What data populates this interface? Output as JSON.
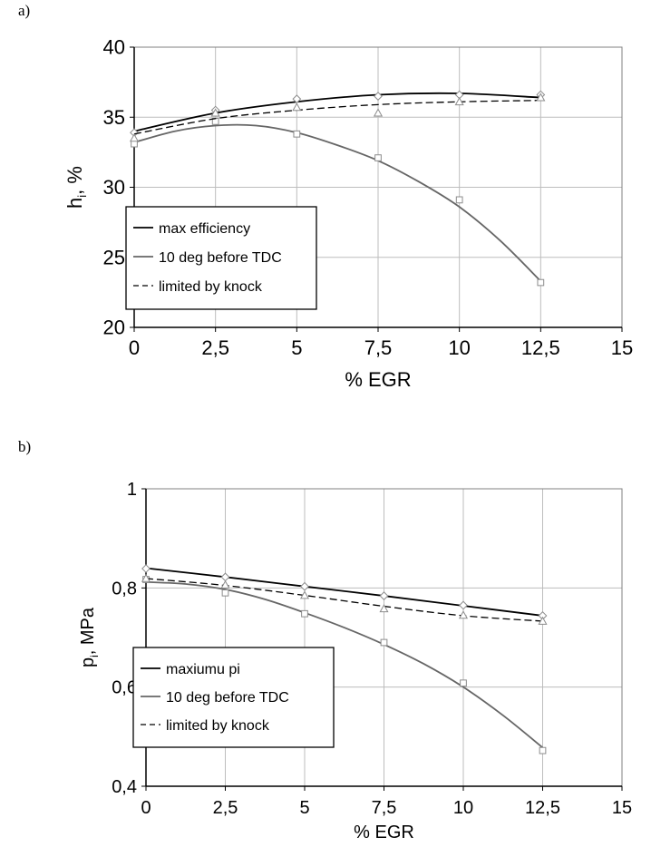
{
  "figure": {
    "panel_a_label": "a)",
    "panel_b_label": "b)"
  },
  "colors": {
    "black_series": "#000000",
    "gray_series": "#666666",
    "grid": "#bdbdbd",
    "marker_gray": "#8c8c8c"
  },
  "chart_data": [
    {
      "type": "line",
      "xlabel": "% EGR",
      "ylabel_main": "h",
      "ylabel_sub": "i",
      "ylabel_tail": ", %",
      "xlim": [
        0,
        15
      ],
      "ylim": [
        20,
        40
      ],
      "xticks": [
        0,
        2.5,
        5,
        7.5,
        10,
        12.5,
        15
      ],
      "xtick_labels": [
        "0",
        "2,5",
        "5",
        "7,5",
        "10",
        "12,5",
        "15"
      ],
      "yticks": [
        20,
        25,
        30,
        35,
        40
      ],
      "ytick_labels": [
        "20",
        "25",
        "30",
        "35",
        "40"
      ],
      "grid": true,
      "legend_position": "lower-left",
      "series": [
        {
          "name": "max efficiency",
          "style": "solid",
          "color": "#000000",
          "marker": "diamond",
          "x": [
            0,
            2.5,
            5,
            7.5,
            10,
            12.5
          ],
          "y": [
            33.9,
            35.5,
            36.3,
            36.5,
            36.6,
            36.6
          ],
          "fit": [
            [
              0,
              34.0
            ],
            [
              2.5,
              35.3
            ],
            [
              5,
              36.1
            ],
            [
              7.5,
              36.6
            ],
            [
              10,
              36.7
            ],
            [
              12.5,
              36.4
            ]
          ]
        },
        {
          "name": "10 deg before TDC",
          "style": "solid",
          "color": "#666666",
          "marker": "square",
          "x": [
            0,
            2.5,
            5,
            7.5,
            10,
            12.5
          ],
          "y": [
            33.1,
            34.7,
            33.8,
            32.1,
            29.1,
            23.2
          ],
          "fit": [
            [
              0,
              33.2
            ],
            [
              1.25,
              34.0
            ],
            [
              2.5,
              34.4
            ],
            [
              3.75,
              34.4
            ],
            [
              5,
              33.9
            ],
            [
              6.25,
              33.0
            ],
            [
              7.5,
              31.9
            ],
            [
              8.75,
              30.4
            ],
            [
              10,
              28.6
            ],
            [
              11.25,
              26.2
            ],
            [
              12.5,
              23.3
            ]
          ]
        },
        {
          "name": "limited by knock",
          "style": "dashed",
          "color": "#000000",
          "marker": "triangle",
          "x": [
            0,
            2.5,
            5,
            7.5,
            10,
            12.5
          ],
          "y": [
            33.5,
            35.3,
            35.7,
            35.3,
            36.1,
            36.4
          ],
          "fit": [
            [
              0,
              33.8
            ],
            [
              2.5,
              34.9
            ],
            [
              5,
              35.5
            ],
            [
              7.5,
              35.9
            ],
            [
              10,
              36.1
            ],
            [
              12.5,
              36.2
            ]
          ]
        }
      ]
    },
    {
      "type": "line",
      "xlabel": "% EGR",
      "ylabel_main": "p",
      "ylabel_sub": "i",
      "ylabel_tail": ", MPa",
      "xlim": [
        0,
        15
      ],
      "ylim": [
        0.4,
        1.0
      ],
      "xticks": [
        0,
        2.5,
        5,
        7.5,
        10,
        12.5,
        15
      ],
      "xtick_labels": [
        "0",
        "2,5",
        "5",
        "7,5",
        "10",
        "12,5",
        "15"
      ],
      "yticks": [
        0.4,
        0.6,
        0.8,
        1.0
      ],
      "ytick_labels": [
        "0,4",
        "0,6",
        "0,8",
        "1"
      ],
      "grid": true,
      "legend_position": "lower-left",
      "series": [
        {
          "name": "maxiumu pi",
          "style": "solid",
          "color": "#000000",
          "marker": "diamond",
          "x": [
            0,
            2.5,
            5,
            7.5,
            10,
            12.5
          ],
          "y": [
            0.839,
            0.822,
            0.803,
            0.784,
            0.765,
            0.744
          ],
          "fit": [
            [
              0,
              0.84
            ],
            [
              2.5,
              0.822
            ],
            [
              5,
              0.803
            ],
            [
              7.5,
              0.784
            ],
            [
              10,
              0.764
            ],
            [
              12.5,
              0.744
            ]
          ]
        },
        {
          "name": "10 deg before TDC",
          "style": "solid",
          "color": "#666666",
          "marker": "square",
          "x": [
            0,
            2.5,
            5,
            7.5,
            10,
            12.5
          ],
          "y": [
            0.817,
            0.79,
            0.748,
            0.69,
            0.608,
            0.472
          ],
          "fit": [
            [
              0,
              0.812
            ],
            [
              1.25,
              0.808
            ],
            [
              2.5,
              0.797
            ],
            [
              3.75,
              0.777
            ],
            [
              5,
              0.75
            ],
            [
              6.25,
              0.72
            ],
            [
              7.5,
              0.686
            ],
            [
              8.75,
              0.647
            ],
            [
              10,
              0.6
            ],
            [
              11.25,
              0.543
            ],
            [
              12.5,
              0.478
            ]
          ]
        },
        {
          "name": "limited by knock",
          "style": "dashed",
          "color": "#000000",
          "marker": "triangle",
          "x": [
            0,
            2.5,
            5,
            7.5,
            10,
            12.5
          ],
          "y": [
            0.819,
            0.806,
            0.785,
            0.758,
            0.745,
            0.733
          ],
          "fit": [
            [
              0,
              0.819
            ],
            [
              2.5,
              0.805
            ],
            [
              5,
              0.785
            ],
            [
              7.5,
              0.763
            ],
            [
              10,
              0.744
            ],
            [
              12.5,
              0.733
            ]
          ]
        }
      ]
    }
  ]
}
